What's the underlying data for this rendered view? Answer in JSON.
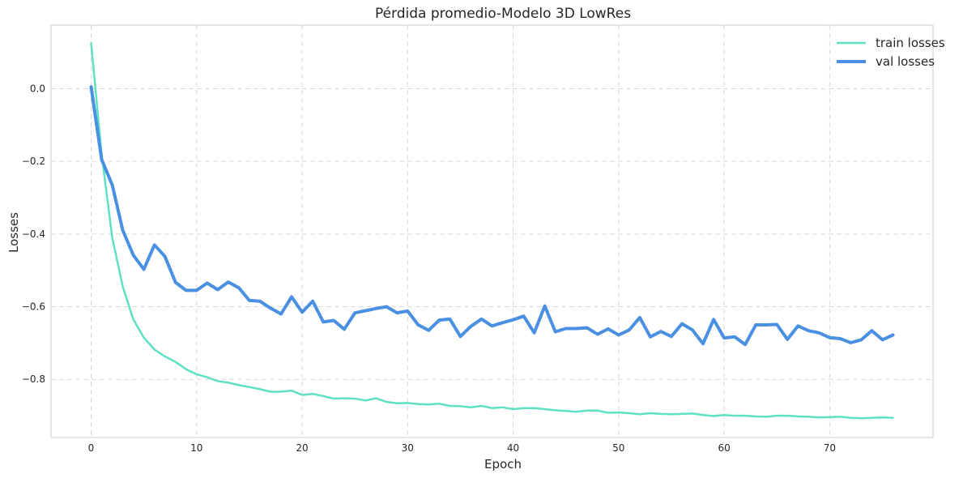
{
  "chart_data": {
    "type": "line",
    "title": "Pérdida promedio-Modelo 3D LowRes",
    "xlabel": "Epoch",
    "ylabel": "Losses",
    "xlim": [
      -3.8,
      79.8
    ],
    "ylim": [
      -0.96,
      0.175
    ],
    "xticks": [
      0,
      10,
      20,
      30,
      40,
      50,
      60,
      70
    ],
    "yticks": [
      0.0,
      -0.2,
      -0.4,
      -0.6,
      -0.8
    ],
    "ytick_labels": [
      "0.0",
      "−0.2",
      "−0.4",
      "−0.6",
      "−0.8"
    ],
    "grid": true,
    "legend_position": "top-right",
    "x": [
      0,
      1,
      2,
      3,
      4,
      5,
      6,
      7,
      8,
      9,
      10,
      11,
      12,
      13,
      14,
      15,
      16,
      17,
      18,
      19,
      20,
      21,
      22,
      23,
      24,
      25,
      26,
      27,
      28,
      29,
      30,
      31,
      32,
      33,
      34,
      35,
      36,
      37,
      38,
      39,
      40,
      41,
      42,
      43,
      44,
      45,
      46,
      47,
      48,
      49,
      50,
      51,
      52,
      53,
      54,
      55,
      56,
      57,
      58,
      59,
      60,
      61,
      62,
      63,
      64,
      65,
      66,
      67,
      68,
      69,
      70,
      71,
      72,
      73,
      74,
      75,
      76
    ],
    "series": [
      {
        "name": "train losses",
        "color": "#5ee0c2",
        "width": 2.5,
        "values": [
          0.125,
          -0.18,
          -0.41,
          -0.545,
          -0.635,
          -0.685,
          -0.718,
          -0.737,
          -0.752,
          -0.772,
          -0.786,
          -0.794,
          -0.805,
          -0.809,
          -0.816,
          -0.821,
          -0.827,
          -0.834,
          -0.834,
          -0.831,
          -0.843,
          -0.84,
          -0.846,
          -0.853,
          -0.852,
          -0.853,
          -0.858,
          -0.852,
          -0.862,
          -0.866,
          -0.865,
          -0.868,
          -0.869,
          -0.867,
          -0.873,
          -0.874,
          -0.877,
          -0.873,
          -0.879,
          -0.877,
          -0.882,
          -0.879,
          -0.879,
          -0.882,
          -0.885,
          -0.887,
          -0.889,
          -0.886,
          -0.886,
          -0.892,
          -0.891,
          -0.893,
          -0.896,
          -0.893,
          -0.895,
          -0.896,
          -0.895,
          -0.894,
          -0.898,
          -0.901,
          -0.898,
          -0.9,
          -0.9,
          -0.902,
          -0.903,
          -0.9,
          -0.9,
          -0.902,
          -0.903,
          -0.905,
          -0.904,
          -0.903,
          -0.906,
          -0.907,
          -0.906,
          -0.905,
          -0.906
        ]
      },
      {
        "name": "val losses",
        "color": "#4a90e2",
        "width": 4,
        "values": [
          0.005,
          -0.195,
          -0.265,
          -0.39,
          -0.458,
          -0.497,
          -0.43,
          -0.462,
          -0.533,
          -0.555,
          -0.555,
          -0.535,
          -0.553,
          -0.532,
          -0.548,
          -0.583,
          -0.585,
          -0.604,
          -0.62,
          -0.573,
          -0.615,
          -0.585,
          -0.642,
          -0.638,
          -0.662,
          -0.617,
          -0.611,
          -0.605,
          -0.6,
          -0.617,
          -0.612,
          -0.65,
          -0.665,
          -0.637,
          -0.634,
          -0.682,
          -0.654,
          -0.634,
          -0.653,
          -0.644,
          -0.636,
          -0.626,
          -0.672,
          -0.598,
          -0.669,
          -0.66,
          -0.66,
          -0.658,
          -0.676,
          -0.661,
          -0.678,
          -0.664,
          -0.63,
          -0.683,
          -0.668,
          -0.682,
          -0.647,
          -0.664,
          -0.702,
          -0.635,
          -0.686,
          -0.683,
          -0.704,
          -0.65,
          -0.65,
          -0.649,
          -0.69,
          -0.653,
          -0.666,
          -0.672,
          -0.685,
          -0.688,
          -0.699,
          -0.691,
          -0.666,
          -0.691,
          -0.678
        ]
      }
    ]
  }
}
